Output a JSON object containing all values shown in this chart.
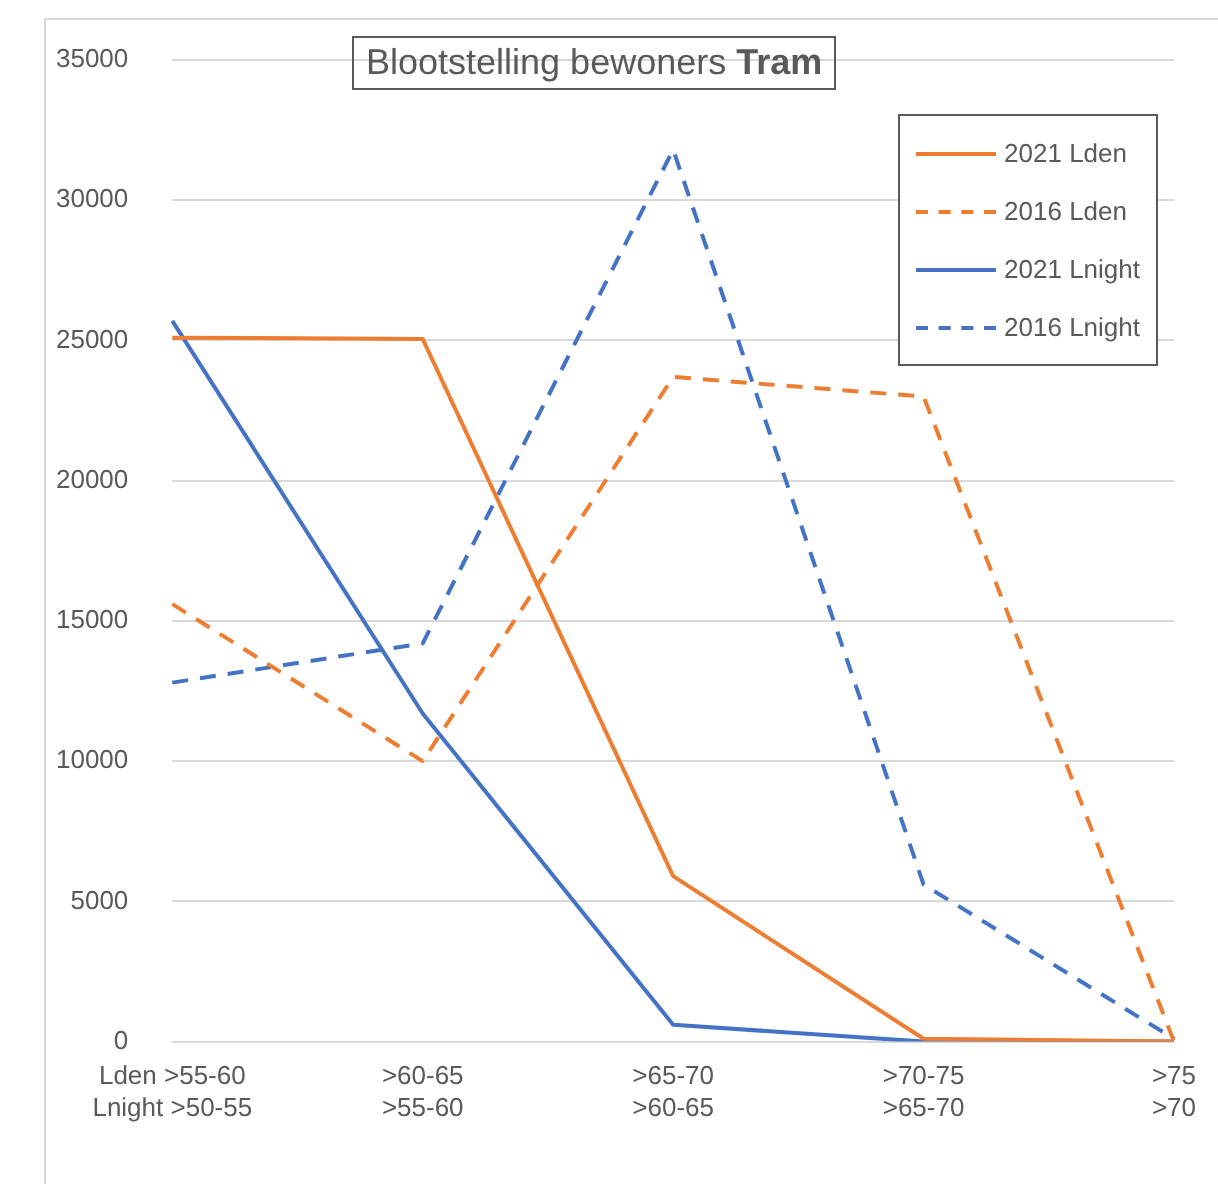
{
  "chart_data": {
    "type": "line",
    "title": "Blootstelling bewoners Tram",
    "categories": [
      "Lden >55-60\nLnight >50-55",
      ">60-65\n>55-60",
      ">65-70\n>60-65",
      ">70-75\n>65-70",
      ">75\n>70"
    ],
    "series": [
      {
        "name": "2021 Lden",
        "color": "#ed7d31",
        "line_style": "solid",
        "values": [
          25100,
          25050,
          5900,
          100,
          0
        ]
      },
      {
        "name": "2016 Lden",
        "color": "#ed7d31",
        "line_style": "dashed",
        "values": [
          15600,
          10000,
          23700,
          23000,
          0
        ]
      },
      {
        "name": "2021 Lnight",
        "color": "#4472c4",
        "line_style": "solid",
        "values": [
          25700,
          11700,
          600,
          0,
          0
        ]
      },
      {
        "name": "2016 Lnight",
        "color": "#4472c4",
        "line_style": "dashed",
        "values": [
          12800,
          14200,
          31800,
          5600,
          100
        ]
      }
    ],
    "ylim": [
      0,
      35000
    ],
    "yticks": [
      0,
      5000,
      10000,
      15000,
      20000,
      25000,
      30000,
      35000
    ],
    "grid": "y",
    "legend": "top right",
    "marker": "none"
  }
}
